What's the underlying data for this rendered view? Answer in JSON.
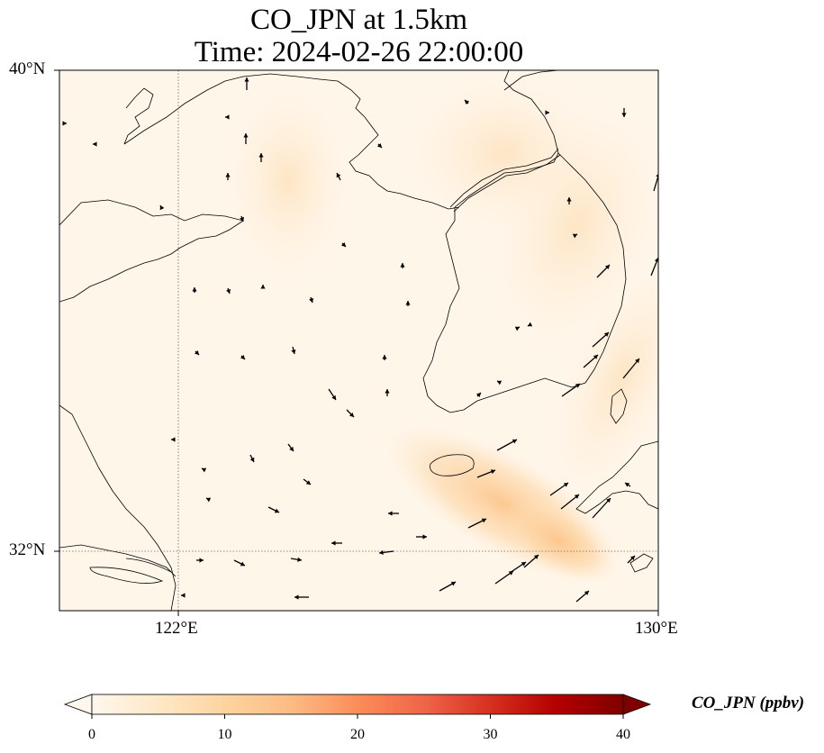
{
  "title": {
    "line1": "CO_JPN at 1.5km",
    "line2": "Time: 2024-02-26 22:00:00"
  },
  "axes": {
    "lat_ticks": [
      "40°N",
      "32°N"
    ],
    "lon_ticks": [
      "122°E",
      "130°E"
    ],
    "lon_range": [
      120,
      130
    ],
    "lat_range": [
      31,
      40
    ],
    "gridlines": "dotted"
  },
  "colorbar": {
    "label": "CO_JPN (ppbv)",
    "ticks": [
      "0",
      "10",
      "20",
      "30",
      "40"
    ],
    "range": [
      0,
      40
    ],
    "colormap": "OrRd",
    "extend": "both",
    "colors": [
      "#fff7ec",
      "#fee8c8",
      "#fdd49e",
      "#fdbb84",
      "#fc8d59",
      "#ef6548",
      "#d7301f",
      "#b30000",
      "#7f0000"
    ]
  }
}
